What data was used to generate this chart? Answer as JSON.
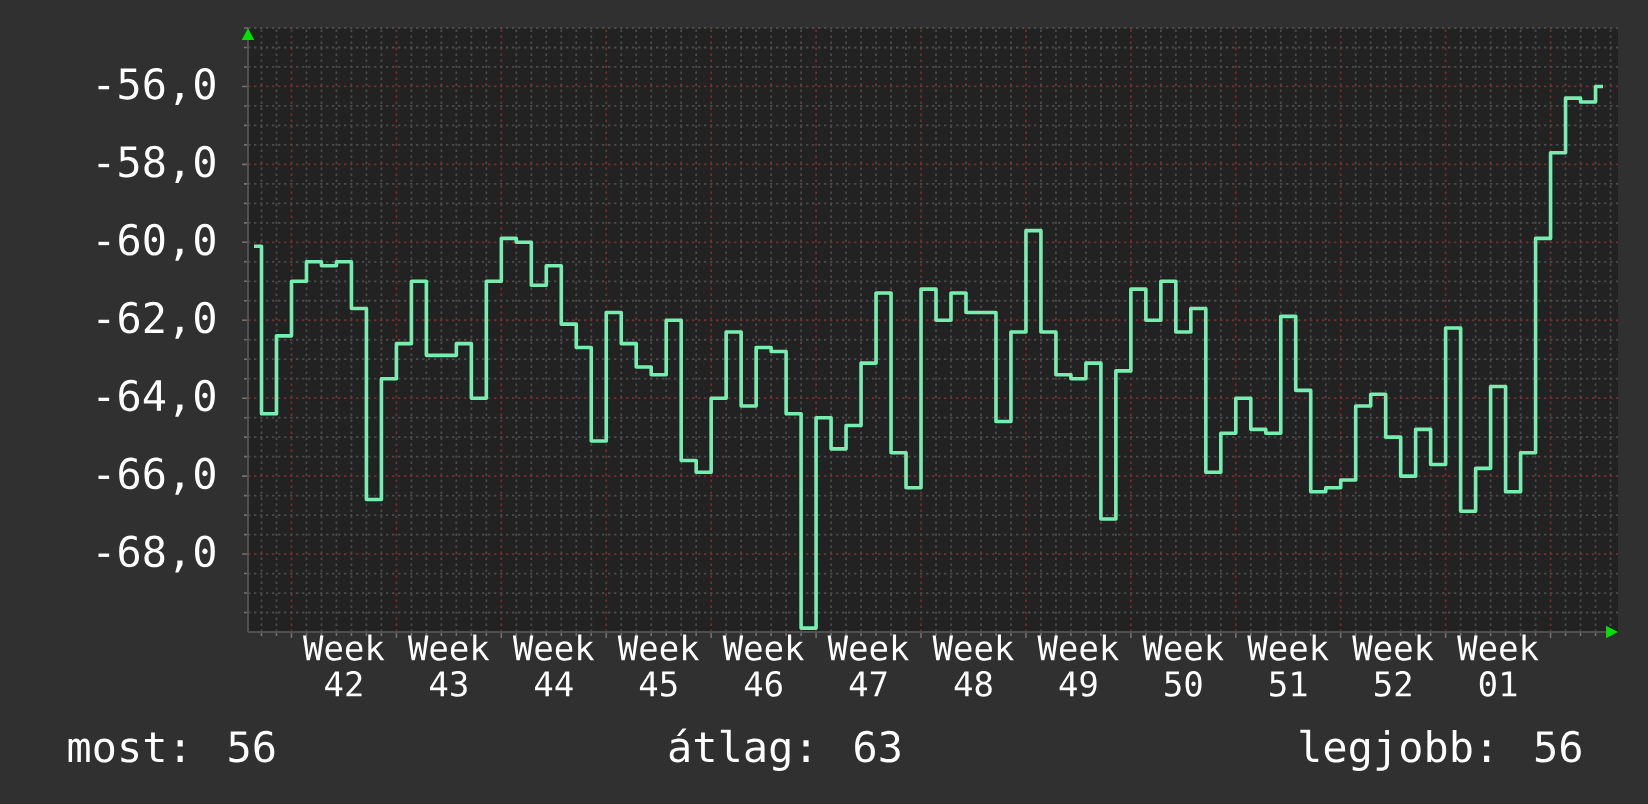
{
  "chart_data": {
    "type": "step",
    "color": "#77eeb0",
    "categories": [
      null,
      null,
      null,
      null,
      null,
      null,
      "Week 42",
      null,
      null,
      null,
      null,
      null,
      null,
      "Week 43",
      null,
      null,
      null,
      null,
      null,
      null,
      "Week 44",
      null,
      null,
      null,
      null,
      null,
      null,
      "Week 45",
      null,
      null,
      null,
      null,
      null,
      null,
      "Week 46",
      null,
      null,
      null,
      null,
      null,
      null,
      "Week 47",
      null,
      null,
      null,
      null,
      null,
      null,
      "Week 48",
      null,
      null,
      null,
      null,
      null,
      null,
      "Week 49",
      null,
      null,
      null,
      null,
      null,
      null,
      "Week 50",
      null,
      null,
      null,
      null,
      null,
      null,
      "Week 51",
      null,
      null,
      null,
      null,
      null,
      null,
      "Week 52",
      null,
      null,
      null,
      null,
      null,
      null,
      "Week 01",
      null,
      null,
      null,
      null,
      null,
      null,
      null
    ],
    "values": [
      -60.1,
      -64.4,
      -62.4,
      -61.0,
      -60.5,
      -60.6,
      -60.5,
      -61.7,
      -66.6,
      -63.5,
      -62.6,
      -61.0,
      -62.9,
      -62.9,
      -62.6,
      -64.0,
      -61.0,
      -59.9,
      -60.0,
      -61.1,
      -60.6,
      -62.1,
      -62.7,
      -65.1,
      -61.8,
      -62.6,
      -63.2,
      -63.4,
      -62.0,
      -65.6,
      -65.9,
      -64.0,
      -62.3,
      -64.2,
      -62.7,
      -62.8,
      -64.4,
      -69.9,
      -64.5,
      -65.3,
      -64.7,
      -63.1,
      -61.3,
      -65.4,
      -66.3,
      -61.2,
      -62.0,
      -61.3,
      -61.8,
      -61.8,
      -64.6,
      -62.3,
      -59.7,
      -62.3,
      -63.4,
      -63.5,
      -63.1,
      -67.1,
      -63.3,
      -61.2,
      -62.0,
      -61.0,
      -62.3,
      -61.7,
      -65.9,
      -64.9,
      -64.0,
      -64.8,
      -64.9,
      -61.9,
      -63.8,
      -66.4,
      -66.3,
      -66.1,
      -64.2,
      -63.9,
      -65.0,
      -66.0,
      -64.8,
      -65.7,
      -62.2,
      -66.9,
      -65.8,
      -63.7,
      -66.4,
      -65.4,
      -59.9,
      -57.7,
      -56.3,
      -56.4,
      -56.0
    ],
    "ylim": [
      -70.0,
      -54.5
    ],
    "yticks": [
      {
        "value": -56,
        "label": "-56,0"
      },
      {
        "value": -58,
        "label": "-58,0"
      },
      {
        "value": -60,
        "label": "-60,0"
      },
      {
        "value": -62,
        "label": "-62,0"
      },
      {
        "value": -64,
        "label": "-64,0"
      },
      {
        "value": -66,
        "label": "-66,0"
      },
      {
        "value": -68,
        "label": "-68,0"
      }
    ],
    "grid": true,
    "annotations": [
      "most: 56",
      "átlag: 63",
      "legjobb: 56"
    ]
  }
}
